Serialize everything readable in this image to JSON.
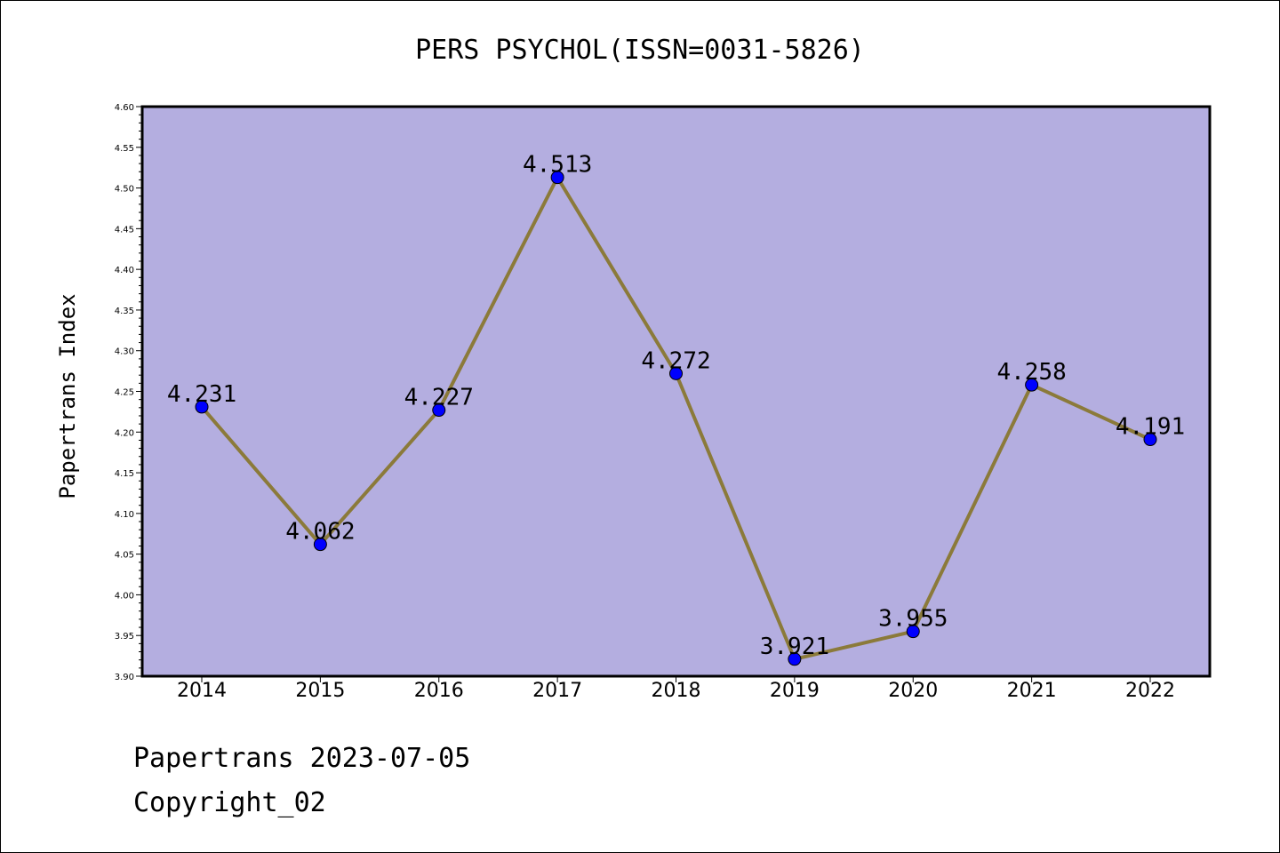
{
  "chart_data": {
    "type": "line",
    "title": "PERS PSYCHOL(ISSN=0031-5826)",
    "xlabel": "",
    "ylabel": "Papertrans Index",
    "categories": [
      "2014",
      "2015",
      "2016",
      "2017",
      "2018",
      "2019",
      "2020",
      "2021",
      "2022"
    ],
    "values": [
      4.231,
      4.062,
      4.227,
      4.513,
      4.272,
      3.921,
      3.955,
      4.258,
      4.191
    ],
    "data_labels": [
      "4.231",
      "4.062",
      "4.227",
      "4.513",
      "4.272",
      "3.921",
      "3.955",
      "4.258",
      "4.191"
    ],
    "ylim": [
      3.9,
      4.6
    ],
    "yticks": [
      "3.90",
      "3.95",
      "4.00",
      "4.05",
      "4.10",
      "4.15",
      "4.20",
      "4.25",
      "4.30",
      "4.35",
      "4.40",
      "4.45",
      "4.50",
      "4.55",
      "4.60"
    ],
    "grid": false,
    "legend": "none",
    "colors": {
      "plot_background": "#b4aee0",
      "line": "#8b7a3a",
      "marker": "#0000ff"
    }
  },
  "footer": {
    "line1": "Papertrans 2023-07-05",
    "line2": "Copyright_02"
  }
}
